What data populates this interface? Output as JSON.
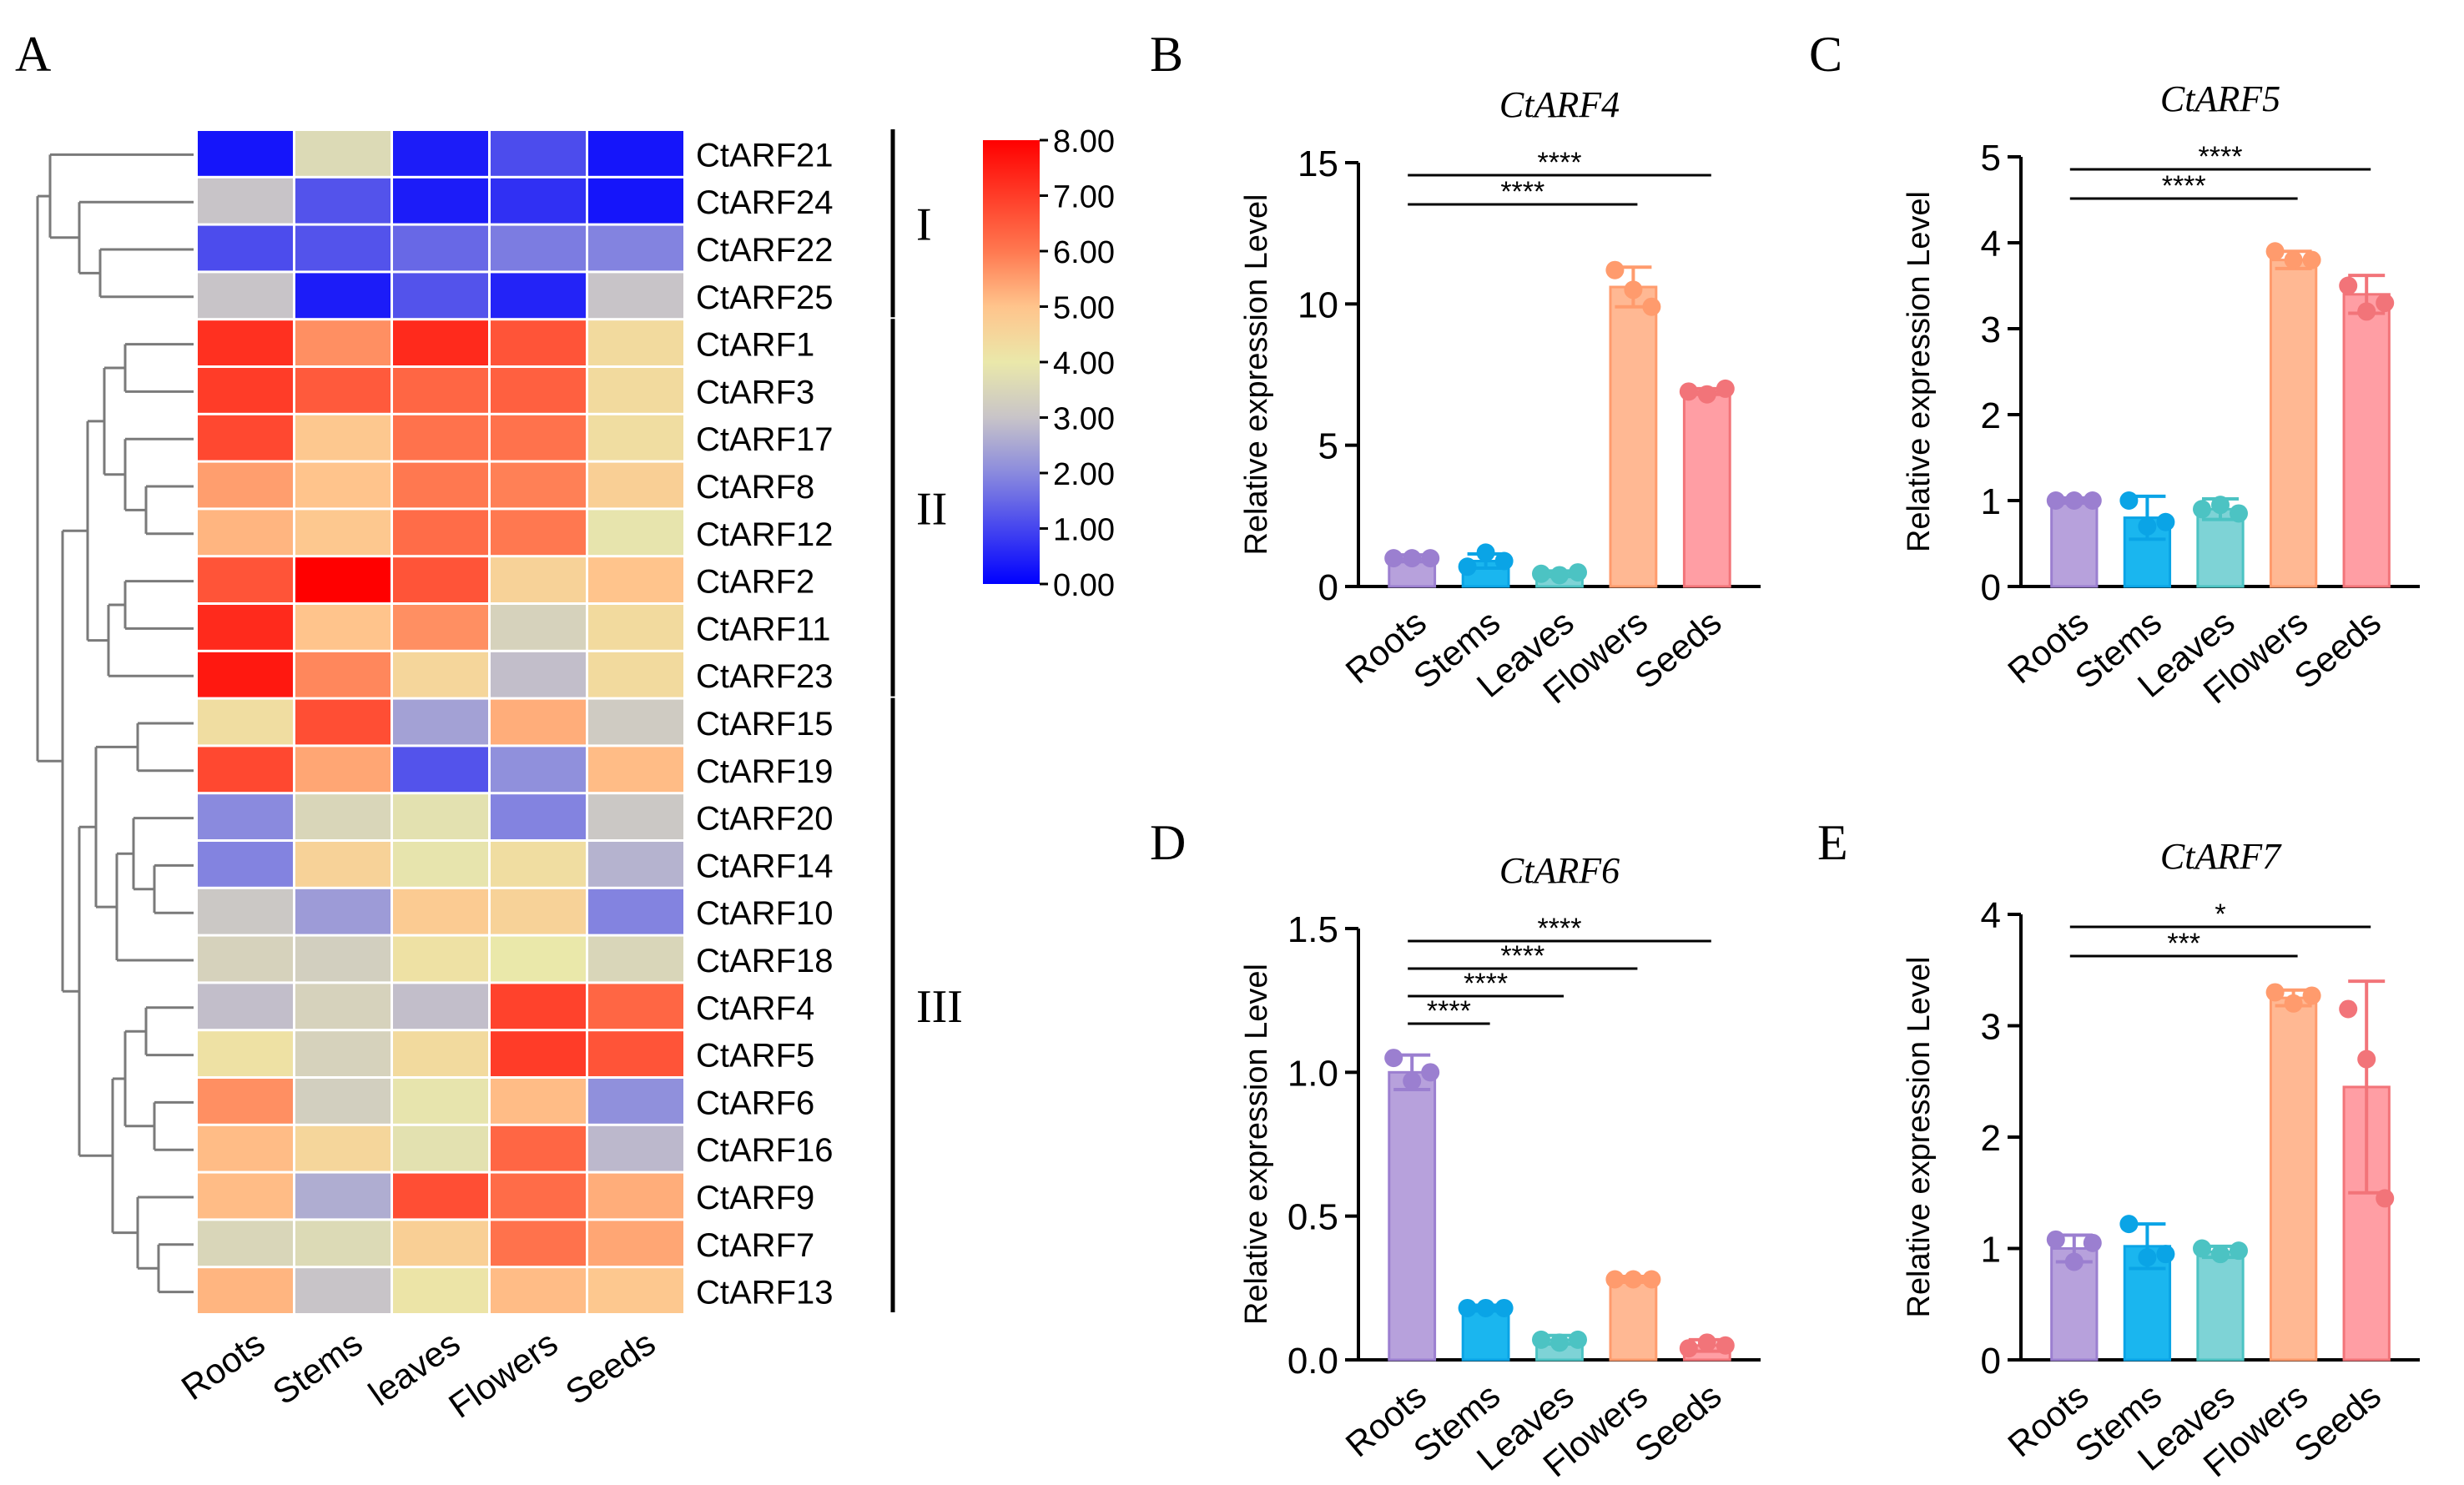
{
  "panel_labels": [
    "A",
    "B",
    "C",
    "D",
    "E"
  ],
  "colors": {
    "roots": "#b7a1dc",
    "stems": "#1ab6ef",
    "leaves": "#7ed3d6",
    "flowers": "#ffb893",
    "seeds": "#ff9ea4",
    "roots_dark": "#9b7fd0",
    "stems_dark": "#0aa4e6",
    "leaves_dark": "#4cc3c3",
    "flowers_dark": "#ff9b6d",
    "seeds_dark": "#f27479",
    "dendrogram": "#7a7a7a"
  },
  "heatmap": {
    "columns": [
      "Roots",
      "Stems",
      "leaves",
      "Flowers",
      "Seeds"
    ],
    "rows": [
      "CtARF21",
      "CtARF24",
      "CtARF22",
      "CtARF25",
      "CtARF1",
      "CtARF3",
      "CtARF17",
      "CtARF8",
      "CtARF12",
      "CtARF2",
      "CtARF11",
      "CtARF23",
      "CtARF15",
      "CtARF19",
      "CtARF20",
      "CtARF14",
      "CtARF10",
      "CtARF18",
      "CtARF4",
      "CtARF5",
      "CtARF6",
      "CtARF16",
      "CtARF9",
      "CtARF7",
      "CtARF13"
    ],
    "values": [
      [
        0.3,
        3.6,
        0.4,
        1.1,
        0.3
      ],
      [
        3.0,
        1.2,
        0.4,
        0.7,
        0.3
      ],
      [
        1.1,
        1.2,
        1.5,
        1.8,
        1.9
      ],
      [
        3.0,
        0.4,
        1.2,
        0.5,
        3.0
      ],
      [
        7.2,
        5.7,
        7.3,
        6.6,
        4.4
      ],
      [
        7.0,
        6.5,
        6.3,
        6.4,
        4.4
      ],
      [
        6.8,
        4.9,
        6.1,
        6.1,
        4.3
      ],
      [
        5.5,
        5.0,
        6.0,
        5.9,
        4.7
      ],
      [
        5.2,
        4.9,
        6.2,
        6.0,
        3.9
      ],
      [
        6.6,
        8.0,
        6.6,
        4.6,
        5.0
      ],
      [
        7.3,
        5.0,
        5.7,
        3.4,
        4.4
      ],
      [
        7.6,
        5.8,
        4.5,
        2.9,
        4.4
      ],
      [
        4.3,
        6.7,
        2.4,
        5.3,
        3.2
      ],
      [
        6.8,
        5.4,
        1.2,
        2.1,
        5.1
      ],
      [
        2.0,
        3.5,
        3.8,
        1.9,
        3.1
      ],
      [
        1.9,
        4.6,
        3.9,
        4.3,
        2.7
      ],
      [
        3.1,
        2.3,
        4.8,
        4.6,
        1.9
      ],
      [
        3.4,
        3.3,
        4.2,
        4.0,
        3.5
      ],
      [
        2.9,
        3.4,
        2.9,
        6.9,
        6.3
      ],
      [
        4.2,
        3.4,
        4.4,
        7.0,
        6.6
      ],
      [
        5.7,
        3.3,
        3.9,
        5.1,
        2.1
      ],
      [
        5.1,
        4.5,
        3.8,
        6.3,
        2.8
      ],
      [
        5.1,
        2.6,
        6.7,
        6.2,
        5.3
      ],
      [
        3.5,
        3.6,
        4.7,
        6.1,
        5.4
      ],
      [
        5.2,
        3.0,
        4.1,
        5.1,
        4.9
      ]
    ],
    "scale_min": 0,
    "scale_max": 8,
    "scale_labels": [
      "8.00",
      "7.00",
      "6.00",
      "5.00",
      "4.00",
      "3.00",
      "2.00",
      "1.00",
      "0.00"
    ],
    "groups": [
      "I",
      "II",
      "III"
    ]
  },
  "chart_data": [
    {
      "id": "B",
      "type": "bar",
      "title": "CtARF4",
      "ylabel": "Relative expression Level",
      "categories": [
        "Roots",
        "Stems",
        "Leaves",
        "Flowers",
        "Seeds"
      ],
      "values": [
        1.0,
        0.9,
        0.45,
        10.6,
        6.9
      ],
      "errors": [
        0.12,
        0.25,
        0.1,
        0.7,
        0.1
      ],
      "points": [
        [
          1.0,
          1.0,
          1.0
        ],
        [
          0.7,
          1.2,
          0.9
        ],
        [
          0.45,
          0.4,
          0.5
        ],
        [
          11.2,
          10.5,
          9.9
        ],
        [
          6.9,
          6.8,
          7.0
        ]
      ],
      "ylim": [
        0,
        15
      ],
      "yticks": [
        "0",
        "5",
        "10",
        "15"
      ],
      "significance": [
        {
          "from": "Roots",
          "to": "Flowers",
          "label": "****"
        },
        {
          "from": "Roots",
          "to": "Seeds",
          "label": "****"
        }
      ]
    },
    {
      "id": "C",
      "type": "bar",
      "title": "CtARF5",
      "ylabel": "Relative expression Level",
      "categories": [
        "Roots",
        "Stems",
        "Leaves",
        "Flowers",
        "Seeds"
      ],
      "values": [
        1.0,
        0.8,
        0.9,
        3.8,
        3.4
      ],
      "errors": [
        0.03,
        0.25,
        0.12,
        0.1,
        0.22
      ],
      "points": [
        [
          1.0,
          1.0,
          1.0
        ],
        [
          1.0,
          0.7,
          0.75
        ],
        [
          0.9,
          0.95,
          0.85
        ],
        [
          3.9,
          3.8,
          3.8
        ],
        [
          3.5,
          3.2,
          3.3
        ]
      ],
      "ylim": [
        0,
        5
      ],
      "yticks": [
        "0",
        "1",
        "2",
        "3",
        "4",
        "5"
      ],
      "significance": [
        {
          "from": "Roots",
          "to": "Flowers",
          "label": "****"
        },
        {
          "from": "Roots",
          "to": "Seeds",
          "label": "****"
        }
      ]
    },
    {
      "id": "D",
      "type": "bar",
      "title": "CtARF6",
      "ylabel": "Relative expression Level",
      "categories": [
        "Roots",
        "Stems",
        "Leaves",
        "Flowers",
        "Seeds"
      ],
      "values": [
        1.0,
        0.18,
        0.07,
        0.28,
        0.05
      ],
      "errors": [
        0.06,
        0.01,
        0.015,
        0.01,
        0.02
      ],
      "points": [
        [
          1.05,
          0.97,
          1.0
        ],
        [
          0.18,
          0.18,
          0.18
        ],
        [
          0.07,
          0.06,
          0.07
        ],
        [
          0.28,
          0.28,
          0.28
        ],
        [
          0.04,
          0.06,
          0.05
        ]
      ],
      "ylim": [
        0,
        1.5
      ],
      "yticks": [
        "0.0",
        "0.5",
        "1.0",
        "1.5"
      ],
      "significance": [
        {
          "from": "Roots",
          "to": "Stems",
          "label": "****"
        },
        {
          "from": "Roots",
          "to": "Leaves",
          "label": "****"
        },
        {
          "from": "Roots",
          "to": "Flowers",
          "label": "****"
        },
        {
          "from": "Roots",
          "to": "Seeds",
          "label": "****"
        }
      ]
    },
    {
      "id": "E",
      "type": "bar",
      "title": "CtARF7",
      "ylabel": "Relative expression Level",
      "categories": [
        "Roots",
        "Stems",
        "Leaves",
        "Flowers",
        "Seeds"
      ],
      "values": [
        1.0,
        1.02,
        0.97,
        3.25,
        2.45
      ],
      "errors": [
        0.12,
        0.2,
        0.05,
        0.07,
        0.95
      ],
      "points": [
        [
          1.08,
          0.88,
          1.05
        ],
        [
          1.22,
          0.92,
          0.95
        ],
        [
          1.0,
          0.95,
          0.98
        ],
        [
          3.3,
          3.2,
          3.27
        ],
        [
          3.15,
          2.7,
          1.45
        ]
      ],
      "ylim": [
        0,
        4
      ],
      "yticks": [
        "0",
        "1",
        "2",
        "3",
        "4"
      ],
      "significance": [
        {
          "from": "Roots",
          "to": "Flowers",
          "label": "***"
        },
        {
          "from": "Roots",
          "to": "Seeds",
          "label": "*"
        }
      ]
    }
  ]
}
